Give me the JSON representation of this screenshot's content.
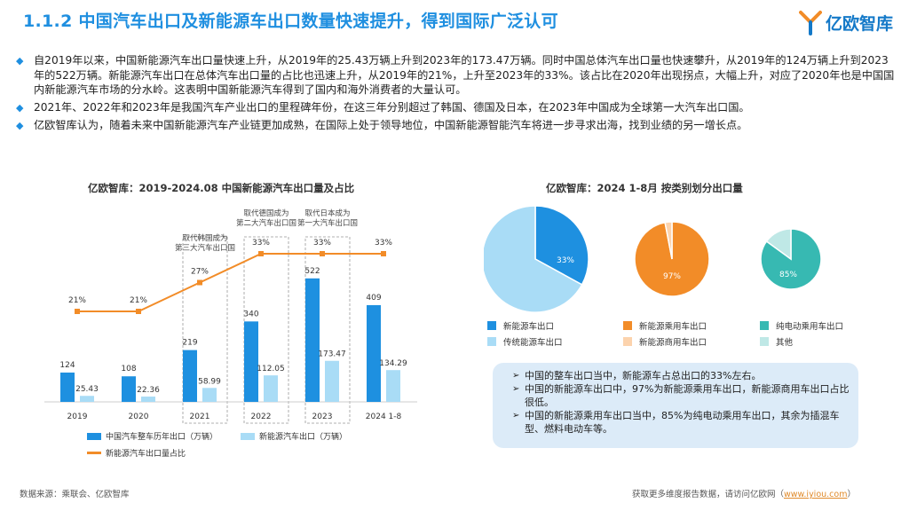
{
  "page": {
    "title": "1.1.2 中国汽车出口及新能源车出口数量快速提升，得到国际广泛认可",
    "logo_text": "亿欧智库",
    "bullets": [
      "自2019年以来，中国新能源汽车出口量快速上升，从2019年的25.43万辆上升到2023年的173.47万辆。同时中国总体汽车出口量也快速攀升，从2019年的124万辆上升到2023年的522万辆。新能源汽车出口在总体汽车出口量的占比也迅速上升，从2019年的21%，上升至2023年的33%。该占比在2020年出现拐点，大幅上升，对应了2020年也是中国国内新能源汽车市场的分水岭。这表明中国新能源汽车得到了国内和海外消费者的大量认可。",
      "2021年、2022年和2023年是我国汽车产业出口的里程碑年份，在这三年分别超过了韩国、德国及日本，在2023年中国成为全球第一大汽车出口国。",
      "亿欧智库认为，随着未来中国新能源汽车产业链更加成熟，在国际上处于领导地位，中国新能源智能汽车将进一步寻求出海，找到业绩的另一增长点。"
    ],
    "source": "数据来源：乘联会、亿欧智库",
    "footer_text": "获取更多维度报告数据，请访问亿欧网（",
    "footer_link": "www.iyiou.com",
    "footer_end": "）"
  },
  "colors": {
    "title": "#1f8fe0",
    "bar_total": "#1e90e0",
    "bar_nev": "#a9dcf6",
    "line_share": "#f28c28",
    "pie1_main": "#1e90e0",
    "pie1_rest": "#a9dcf6",
    "pie2_main": "#f28c28",
    "pie2_rest": "#fcd3ad",
    "pie3_main": "#37b9b2",
    "pie3_rest": "#bfe8e6"
  },
  "chart_data": [
    {
      "type": "bar",
      "title": "亿欧智库：2019-2024.08 中国新能源汽车出口量及占比",
      "categories": [
        "2019",
        "2020",
        "2021",
        "2022",
        "2023",
        "2024 1-8"
      ],
      "series": [
        {
          "name": "中国汽车整车历年出口（万辆）",
          "type": "bar",
          "values": [
            124,
            108,
            219,
            340,
            522,
            409
          ],
          "labels": [
            "124",
            "108",
            "219",
            "340",
            "522",
            "409"
          ]
        },
        {
          "name": "新能源汽车出口（万辆）",
          "type": "bar",
          "values": [
            25.43,
            22.36,
            58.99,
            112.05,
            173.47,
            134.29
          ],
          "labels": [
            "25.43",
            "22.36",
            "58.99",
            "112.05",
            "173.47",
            "134.29"
          ]
        },
        {
          "name": "新能源汽车出口量占比",
          "type": "line",
          "values": [
            21,
            21,
            27,
            33,
            33,
            33
          ],
          "labels": [
            "21%",
            "21%",
            "27%",
            "33%",
            "33%",
            "33%"
          ]
        }
      ],
      "annotations": [
        {
          "category": "2021",
          "text": [
            "取代韩国成为",
            "第三大汽车出口国"
          ]
        },
        {
          "category": "2022",
          "text": [
            "取代德国成为",
            "第二大汽车出口国"
          ]
        },
        {
          "category": "2023",
          "text": [
            "取代日本成为",
            "第一大汽车出口国"
          ]
        }
      ],
      "ylim": [
        0,
        600
      ],
      "y2lim": [
        0,
        40
      ],
      "grid": false
    },
    {
      "type": "pie",
      "title": "亿欧智库：2024 1-8月 按类别划分出口量",
      "pies": [
        {
          "slices": [
            {
              "name": "新能源车出口",
              "value": 33,
              "label": "33%"
            },
            {
              "name": "传统能源车出口",
              "value": 67
            }
          ]
        },
        {
          "slices": [
            {
              "name": "新能源乘用车出口",
              "value": 97,
              "label": "97%"
            },
            {
              "name": "新能源商用车出口",
              "value": 3
            }
          ]
        },
        {
          "slices": [
            {
              "name": "纯电动乘用车出口",
              "value": 85,
              "label": "85%"
            },
            {
              "name": "其他",
              "value": 15
            }
          ]
        }
      ]
    }
  ],
  "notes": [
    "中国的整车出口当中，新能源车占总出口的33%左右。",
    "中国的新能源车出口中，97%为新能源乘用车出口，新能源商用车出口占比很低。",
    "中国的新能源乘用车出口当中，85%为纯电动乘用车出口，其余为插混车型、燃料电动车等。"
  ]
}
